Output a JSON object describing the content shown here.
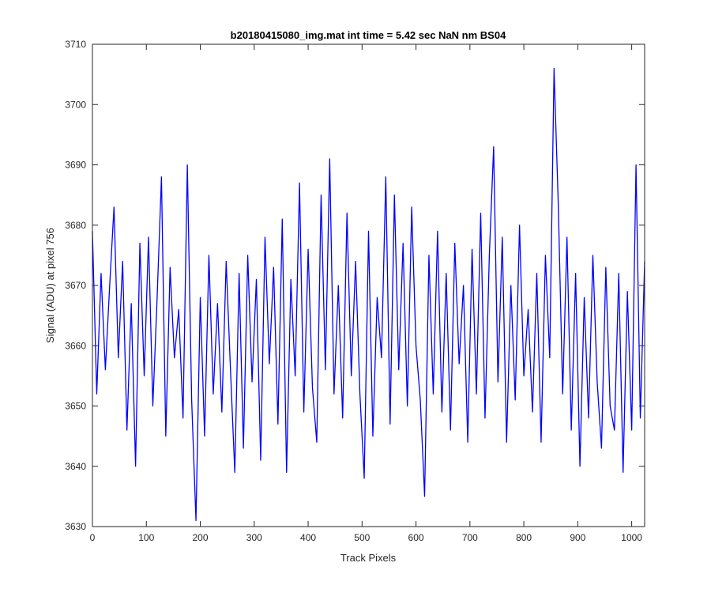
{
  "chart_data": {
    "type": "line",
    "title": "b20180415080_img.mat int time = 5.42 sec  NaN nm BS04",
    "xlabel": "Track Pixels",
    "ylabel": "Signal (ADU) at pixel 756",
    "xlim": [
      0,
      1024
    ],
    "ylim": [
      3630,
      3710
    ],
    "xticks": [
      "0",
      "100",
      "200",
      "300",
      "400",
      "500",
      "600",
      "700",
      "800",
      "900",
      "1000"
    ],
    "yticks": [
      "3630",
      "3640",
      "3650",
      "3660",
      "3670",
      "3680",
      "3690",
      "3700",
      "3710"
    ],
    "grid": false,
    "series": [
      {
        "color": "#0000ff",
        "x": [
          0,
          8,
          16,
          24,
          32,
          40,
          48,
          56,
          64,
          72,
          80,
          88,
          96,
          104,
          112,
          120,
          128,
          136,
          144,
          152,
          160,
          168,
          176,
          184,
          192,
          200,
          208,
          216,
          224,
          232,
          240,
          248,
          256,
          264,
          272,
          280,
          288,
          296,
          304,
          312,
          320,
          328,
          336,
          344,
          352,
          360,
          368,
          376,
          384,
          392,
          400,
          408,
          416,
          424,
          432,
          440,
          448,
          456,
          464,
          472,
          480,
          488,
          496,
          504,
          512,
          520,
          528,
          536,
          544,
          552,
          560,
          568,
          576,
          584,
          592,
          600,
          608,
          616,
          624,
          632,
          640,
          648,
          656,
          664,
          672,
          680,
          688,
          696,
          704,
          712,
          720,
          728,
          736,
          744,
          752,
          760,
          768,
          776,
          784,
          792,
          800,
          808,
          816,
          824,
          832,
          840,
          848,
          856,
          864,
          872,
          880,
          888,
          896,
          904,
          912,
          920,
          928,
          936,
          944,
          952,
          960,
          968,
          976,
          984,
          992,
          1000,
          1008,
          1016,
          1024
        ],
        "y": [
          3679,
          3652,
          3672,
          3656,
          3670,
          3683,
          3658,
          3674,
          3646,
          3667,
          3640,
          3677,
          3655,
          3678,
          3650,
          3668,
          3688,
          3645,
          3673,
          3658,
          3666,
          3648,
          3690,
          3651,
          3631,
          3668,
          3645,
          3675,
          3652,
          3667,
          3649,
          3674,
          3656,
          3639,
          3672,
          3643,
          3675,
          3654,
          3671,
          3641,
          3678,
          3657,
          3673,
          3647,
          3681,
          3639,
          3671,
          3655,
          3687,
          3649,
          3676,
          3653,
          3644,
          3685,
          3656,
          3691,
          3652,
          3670,
          3648,
          3682,
          3655,
          3674,
          3652,
          3638,
          3679,
          3645,
          3668,
          3658,
          3688,
          3647,
          3685,
          3656,
          3677,
          3650,
          3683,
          3660,
          3651,
          3635,
          3675,
          3652,
          3679,
          3649,
          3672,
          3646,
          3677,
          3657,
          3670,
          3644,
          3676,
          3652,
          3682,
          3648,
          3675,
          3693,
          3654,
          3678,
          3644,
          3670,
          3651,
          3680,
          3655,
          3666,
          3649,
          3672,
          3644,
          3675,
          3658,
          3706,
          3683,
          3652,
          3678,
          3646,
          3672,
          3640,
          3668,
          3648,
          3675,
          3654,
          3643,
          3673,
          3650,
          3646,
          3672,
          3639,
          3669,
          3646,
          3690,
          3648,
          3674
        ]
      }
    ]
  }
}
